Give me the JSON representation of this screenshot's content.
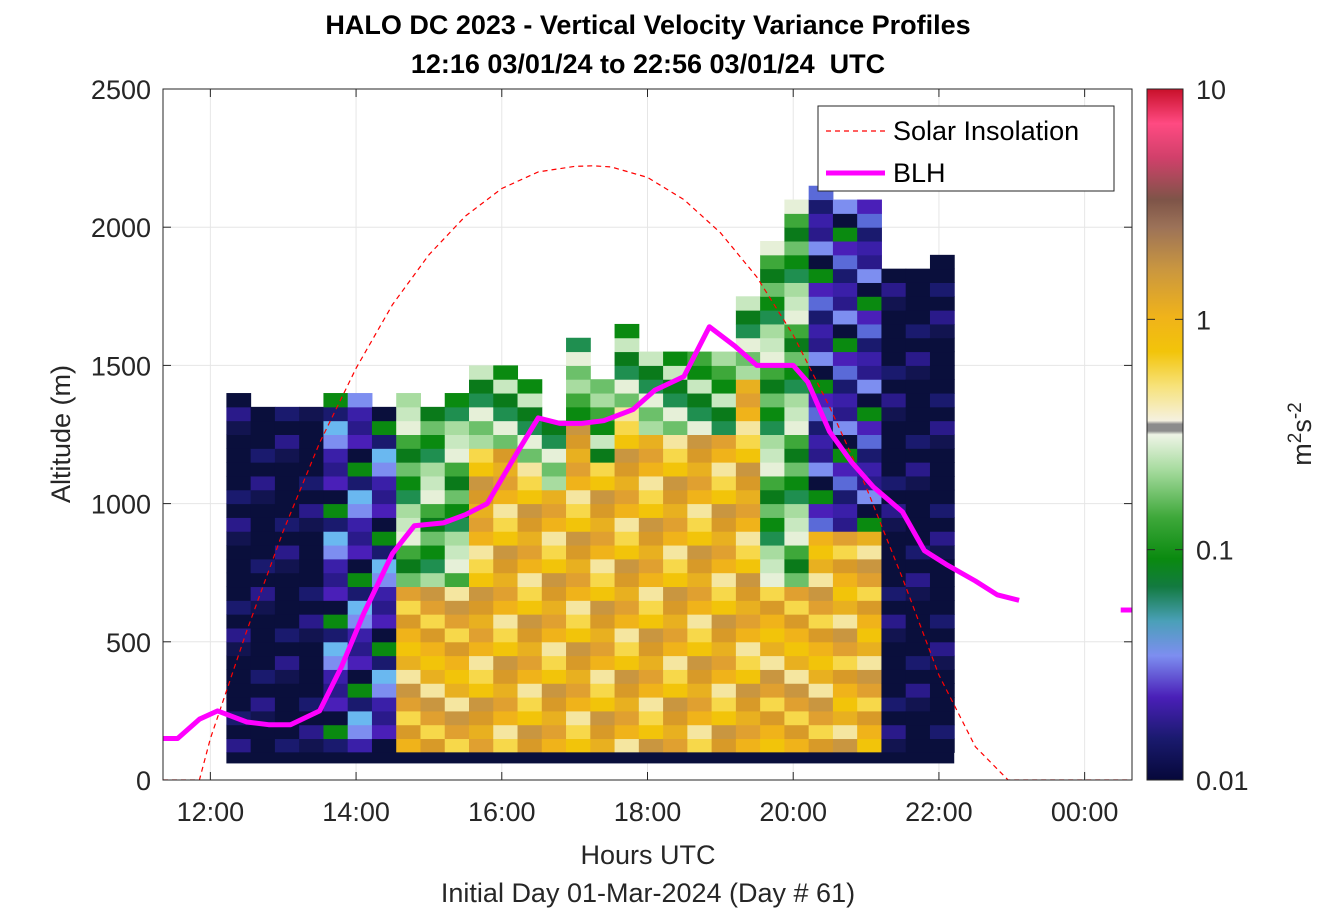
{
  "chart_data": {
    "type": "heatmap",
    "title": "HALO DC 2023 - Vertical Velocity Variance Profiles",
    "subtitle": "12:16 03/01/24 to 22:56 03/01/24  UTC",
    "xlabel": "Hours UTC",
    "xlabel2": "Initial Day 01-Mar-2024 (Day # 61)",
    "ylabel": "Altitude (m)",
    "xlim": [
      11.35,
      24.65
    ],
    "ylim": [
      0,
      2500
    ],
    "x_ticks": [
      12,
      14,
      16,
      18,
      20,
      22,
      24
    ],
    "x_tick_labels": [
      "12:00",
      "14:00",
      "16:00",
      "18:00",
      "20:00",
      "22:00",
      "00:00"
    ],
    "y_ticks": [
      0,
      500,
      1000,
      1500,
      2000,
      2500
    ],
    "y_tick_labels": [
      "0",
      "500",
      "1000",
      "1500",
      "2000",
      "2500"
    ],
    "grid": true,
    "legend_position": "top-right",
    "colorbar": {
      "label": "m²s⁻²",
      "label_base": "m",
      "label_sup1": "2",
      "label_mid": "s",
      "label_sup2": "-2",
      "scale": "log",
      "range": [
        0.01,
        10
      ],
      "ticks": [
        0.01,
        0.1,
        1,
        10
      ],
      "tick_labels": [
        "0.01",
        "0.1",
        "1",
        "10"
      ]
    },
    "heatmap": {
      "x_start": 12.22,
      "x_step": 0.333,
      "y_bins_start": 100,
      "y_step": 50,
      "columns": [
        {
          "top": 1380,
          "profile": "dark"
        },
        {
          "top": 1330,
          "profile": "dark"
        },
        {
          "top": 1330,
          "profile": "dark"
        },
        {
          "top": 1330,
          "profile": "dark"
        },
        {
          "top": 1380,
          "profile": "mixed"
        },
        {
          "top": 1380,
          "profile": "mixed"
        },
        {
          "top": 1330,
          "profile": "mixed"
        },
        {
          "top": 1380,
          "profile": "green"
        },
        {
          "top": 1330,
          "profile": "green"
        },
        {
          "top": 1380,
          "profile": "green"
        },
        {
          "top": 1480,
          "profile": "yellow"
        },
        {
          "top": 1480,
          "profile": "yellow"
        },
        {
          "top": 1430,
          "profile": "yellow"
        },
        {
          "top": 1300,
          "profile": "yellow"
        },
        {
          "top": 1580,
          "profile": "yellow"
        },
        {
          "top": 1430,
          "profile": "yellow"
        },
        {
          "top": 1630,
          "profile": "yellow"
        },
        {
          "top": 1530,
          "profile": "yellow"
        },
        {
          "top": 1530,
          "profile": "yellow"
        },
        {
          "top": 1530,
          "profile": "yellow"
        },
        {
          "top": 1530,
          "profile": "yellow"
        },
        {
          "top": 1730,
          "profile": "yellow"
        },
        {
          "top": 1930,
          "profile": "green"
        },
        {
          "top": 2080,
          "profile": "green"
        },
        {
          "top": 2130,
          "profile": "purple"
        },
        {
          "top": 2080,
          "profile": "purple"
        },
        {
          "top": 2060,
          "profile": "purple"
        },
        {
          "top": 1830,
          "profile": "dark"
        },
        {
          "top": 1830,
          "profile": "dark"
        },
        {
          "top": 1880,
          "profile": "dark"
        }
      ]
    },
    "series": [
      {
        "name": "Solar Insolation",
        "style": "dashed",
        "color": "#ff0000",
        "x": [
          11.35,
          11.85,
          12.0,
          12.5,
          13.0,
          13.5,
          14.0,
          14.5,
          15.0,
          15.5,
          16.0,
          16.5,
          17.0,
          17.25,
          17.5,
          18.0,
          18.5,
          19.0,
          19.5,
          20.0,
          20.5,
          21.0,
          21.5,
          22.0,
          22.5,
          22.95,
          23.5,
          24.65
        ],
        "y": [
          0,
          0,
          150,
          540,
          900,
          1220,
          1490,
          1720,
          1900,
          2040,
          2140,
          2200,
          2220,
          2222,
          2218,
          2180,
          2100,
          1980,
          1820,
          1610,
          1350,
          1060,
          730,
          380,
          120,
          0,
          0,
          0
        ]
      },
      {
        "name": "BLH",
        "style": "solid",
        "color": "#ff00ff",
        "x": [
          11.35,
          11.55,
          11.85,
          12.1,
          12.5,
          12.8,
          13.1,
          13.5,
          13.8,
          14.1,
          14.5,
          14.8,
          15.2,
          15.5,
          15.8,
          16.2,
          16.5,
          16.8,
          17.1,
          17.4,
          17.8,
          18.1,
          18.5,
          18.85,
          19.2,
          19.5,
          20.0,
          20.2,
          20.5,
          20.8,
          21.1,
          21.5,
          21.8,
          22.1,
          22.5,
          22.8,
          23.1
        ],
        "y": [
          150,
          150,
          220,
          250,
          210,
          200,
          200,
          250,
          410,
          600,
          820,
          920,
          930,
          960,
          1000,
          1180,
          1310,
          1290,
          1290,
          1300,
          1340,
          1410,
          1460,
          1640,
          1570,
          1500,
          1500,
          1440,
          1260,
          1150,
          1060,
          970,
          830,
          780,
          720,
          670,
          650
        ]
      }
    ],
    "blh_marker": {
      "x": 24.55,
      "y": 615
    }
  },
  "legend": {
    "items": [
      "Solar Insolation",
      "BLH"
    ]
  },
  "colors": {
    "grid": "#e6e6e6",
    "axis": "#262626",
    "solar": "#ff0000",
    "blh": "#ff00ff",
    "surface_band": "#0a0f3c"
  }
}
